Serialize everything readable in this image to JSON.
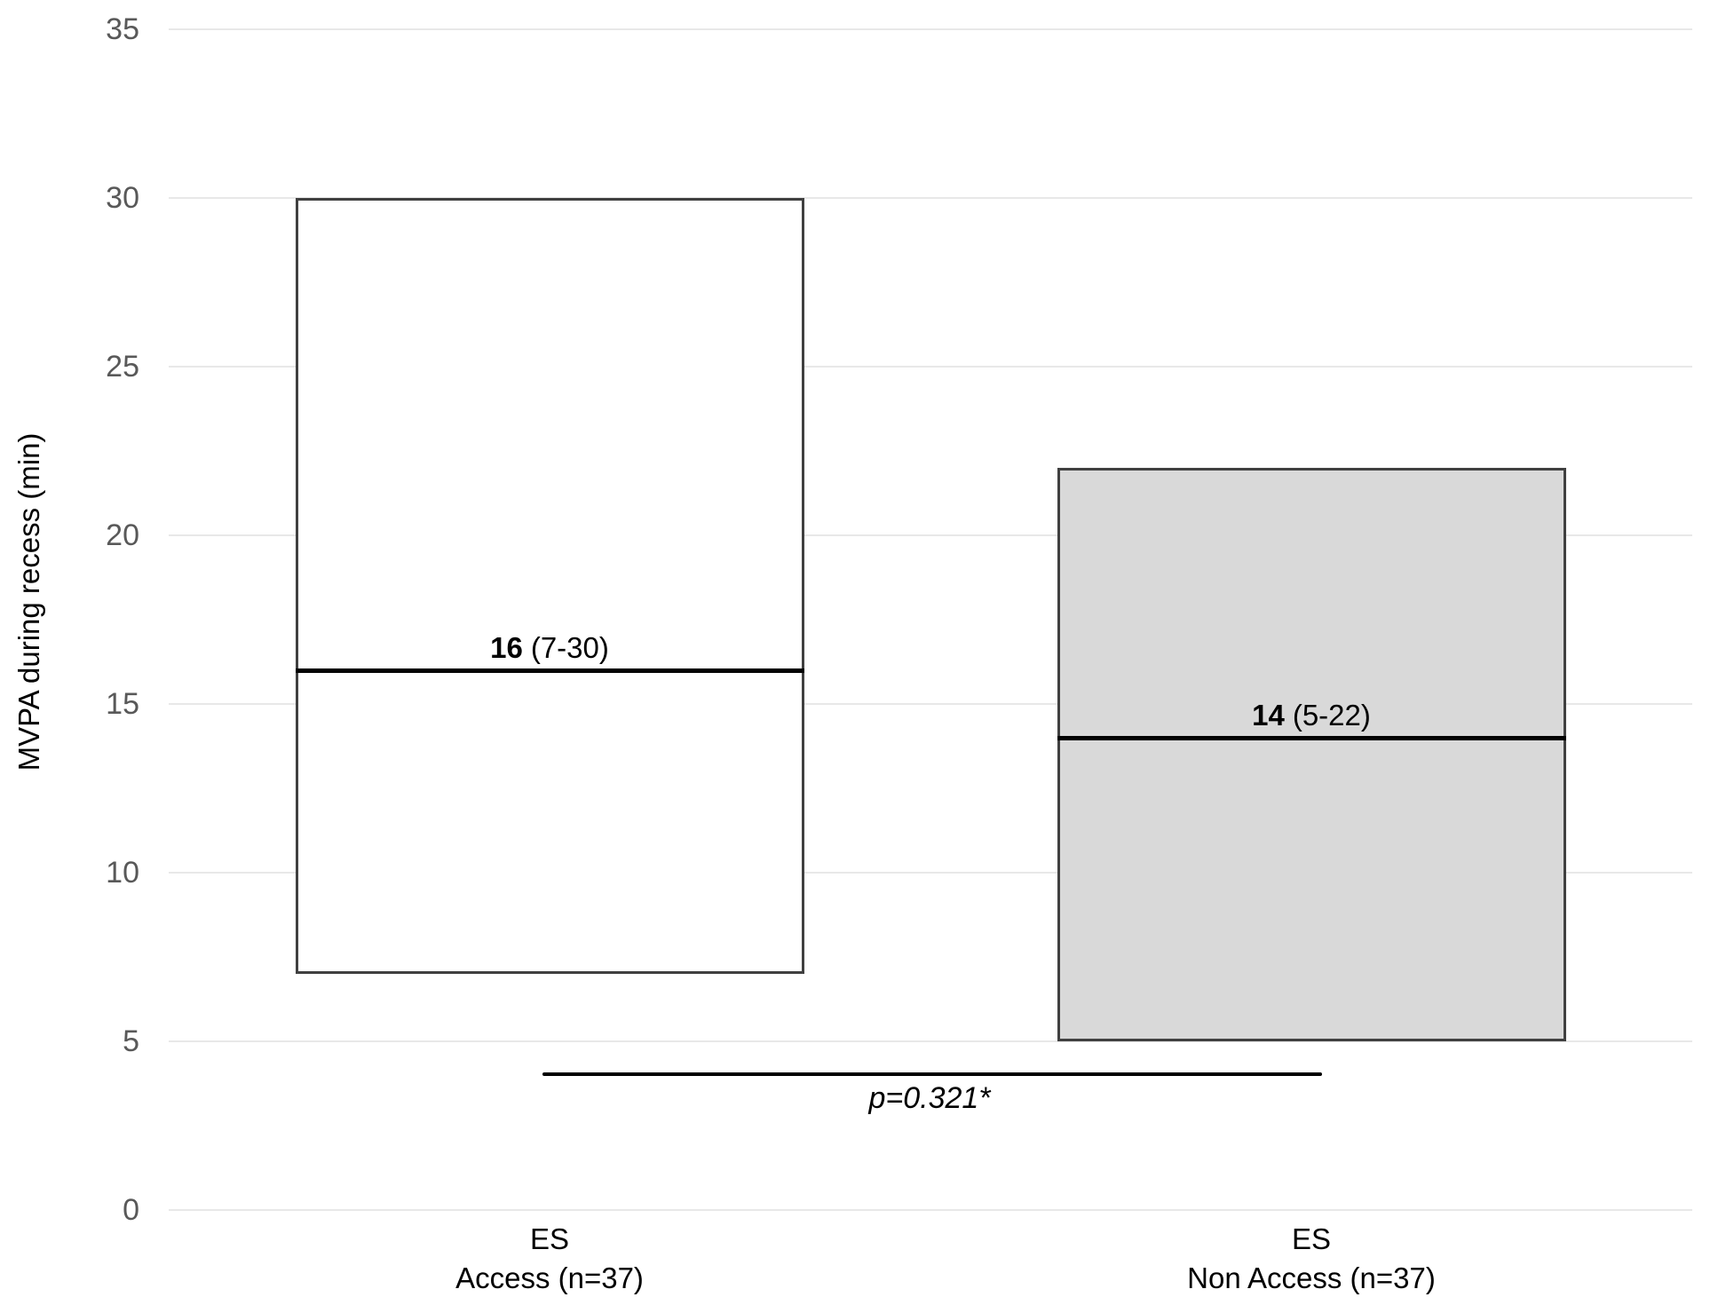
{
  "chart_data": {
    "type": "bar",
    "subtype": "floating-range-bars-with-median-line",
    "title": "",
    "xlabel": "",
    "ylabel": "MVPA during recess (min)",
    "ylim": [
      0,
      35
    ],
    "y_ticks": [
      0,
      5,
      10,
      15,
      20,
      25,
      30,
      35
    ],
    "grid": true,
    "legend": "none",
    "categories": [
      "ES Access (n=37)",
      "ES Non Access (n=37)"
    ],
    "series": [
      {
        "name": "ES Access (n=37)",
        "category_line1": "ES",
        "category_line2": "Access (n=37)",
        "min": 7,
        "max": 30,
        "median": 16,
        "label_median": "16",
        "label_range": "(7-30)",
        "fill": "#ffffff"
      },
      {
        "name": "ES Non Access (n=37)",
        "category_line1": "ES",
        "category_line2": "Non Access (n=37)",
        "min": 5,
        "max": 22,
        "median": 14,
        "label_median": "14",
        "label_range": "(5-22)",
        "fill": "#d9d9d9"
      }
    ],
    "annotation": {
      "text": "p=0.321*",
      "connects": [
        "ES Access (n=37)",
        "ES Non Access (n=37)"
      ],
      "y_value": 4
    },
    "colors": {
      "bar_border": "#404040",
      "median_line": "#000000",
      "gridline": "#e8e8e8",
      "tick_label": "#595959",
      "annotation_line": "#000000",
      "background": "#ffffff"
    }
  }
}
